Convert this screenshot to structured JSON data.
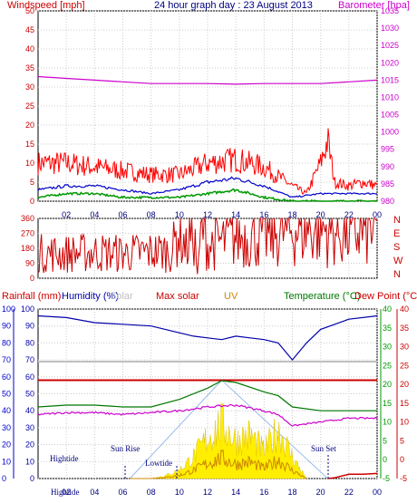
{
  "header": {
    "title": "24 hour graph day : 23 August 2013",
    "left_label": "Windspeed [mph]",
    "right_label": "Barometer [hpa]"
  },
  "lower_header": {
    "rainfall": "Rainfall (mm)",
    "humidity": "Humidity (%)",
    "solar": "Solar",
    "max_solar": "Max solar",
    "uv": "UV",
    "temperature": "Temperature (°C)",
    "dew_point": "Dew Point (°C)"
  },
  "annotations": {
    "hightide_1": "Hightide",
    "sunrise": "Sun Rise",
    "lowtide": "Lowtide",
    "sunset": "Sun Set",
    "hightide_bottom": "Hightide"
  },
  "colors": {
    "wind_gust": "#ff0000",
    "wind_avg": "#0000cc",
    "wind_calm": "#009900",
    "barometer": "#cc00cc",
    "direction": "#cc0000",
    "humidity": "#0000aa",
    "solar_lbl": "#c0c0c0",
    "max_solar": "#cc0000",
    "uv": "#cc8800",
    "temperature": "#007700",
    "dew_point": "#cc0000",
    "rain_axis": "#0000cc",
    "temp_axis": "#009900"
  },
  "chart_data": [
    {
      "type": "line",
      "name": "wind_barometer",
      "x_ticks": [
        "02",
        "04",
        "06",
        "08",
        "10",
        "12",
        "14",
        "16",
        "18",
        "20",
        "22",
        "00"
      ],
      "ylim_left": [
        0,
        50
      ],
      "yticks_left": [
        "0",
        "5",
        "10",
        "15",
        "20",
        "25",
        "30",
        "35",
        "40",
        "45",
        "50"
      ],
      "ylim_right": [
        980,
        1035
      ],
      "yticks_right": [
        "980",
        "985",
        "990",
        "995",
        "1000",
        "1005",
        "1010",
        "1015",
        "1020",
        "1025",
        "1030",
        "1035"
      ],
      "series": [
        {
          "x": [
            0,
            2,
            4,
            6,
            8,
            10,
            12,
            14,
            16,
            18,
            20,
            22,
            24
          ],
          "values": [
            1016,
            1015.5,
            1015,
            1014.5,
            1014,
            1014,
            1014,
            1013.8,
            1014,
            1014,
            1014,
            1014.5,
            1015
          ]
        },
        {
          "x": [
            0,
            2,
            4,
            6,
            8,
            10,
            12,
            14,
            16,
            18,
            19,
            20,
            20.5,
            21,
            22,
            23,
            24
          ],
          "values": [
            10,
            10,
            9,
            8,
            7,
            7,
            10,
            11,
            9,
            4,
            2,
            10,
            16,
            5,
            4,
            5,
            4
          ]
        },
        {
          "x": [
            0,
            2,
            4,
            6,
            8,
            10,
            12,
            14,
            16,
            18,
            20,
            22,
            24
          ],
          "values": [
            3,
            4,
            4,
            3,
            2,
            3,
            5,
            6,
            4,
            1,
            2,
            2,
            2
          ]
        },
        {
          "x": [
            0,
            2,
            4,
            6,
            8,
            10,
            12,
            14,
            16,
            18,
            20,
            22,
            24
          ],
          "values": [
            1,
            2,
            2,
            1,
            1,
            1,
            2,
            3,
            1,
            0,
            0,
            0,
            0
          ]
        }
      ]
    },
    {
      "type": "line",
      "name": "wind_direction",
      "ylim": [
        0,
        360
      ],
      "yticks": [
        "0",
        "90",
        "180",
        "270",
        "360"
      ],
      "compass": [
        "N",
        "W",
        "S",
        "E",
        "N"
      ],
      "series": [
        {
          "x": [
            0,
            2,
            4,
            6,
            8,
            9.5,
            10,
            10.5,
            11,
            11.3,
            11.6,
            12,
            13,
            14,
            16,
            18,
            19,
            20,
            22,
            23,
            24
          ],
          "values": [
            150,
            148,
            155,
            150,
            158,
            165,
            300,
            170,
            320,
            10,
            340,
            200,
            220,
            250,
            260,
            290,
            300,
            300,
            270,
            280,
            300
          ]
        }
      ]
    },
    {
      "type": "line",
      "name": "humidity_temp_solar",
      "ylim_left": [
        0,
        100
      ],
      "yticks_left": [
        "0",
        "10",
        "20",
        "30",
        "40",
        "50",
        "60",
        "70",
        "80",
        "90",
        "100"
      ],
      "ylim_right": [
        -5,
        40
      ],
      "yticks_right": [
        "-5",
        "0",
        "5",
        "10",
        "15",
        "20",
        "25",
        "30",
        "35",
        "40"
      ],
      "series": [
        {
          "x": [
            0,
            2,
            4,
            6,
            8,
            10,
            11,
            12,
            13,
            14,
            15,
            16,
            17,
            18,
            19,
            20,
            22,
            24
          ],
          "values": [
            96,
            95,
            92,
            91,
            90,
            86,
            84,
            83,
            82,
            84,
            83,
            82,
            80,
            70,
            80,
            88,
            94,
            96
          ]
        },
        {
          "x": [
            0,
            24
          ],
          "values": [
            69,
            69
          ]
        },
        {
          "x": [
            0,
            24
          ],
          "values": [
            58,
            58
          ]
        },
        {
          "x": [
            0,
            2,
            4,
            6,
            8,
            10,
            12,
            13,
            14,
            16,
            17,
            18,
            20,
            22,
            24
          ],
          "values": [
            14,
            14.5,
            14.5,
            14,
            14,
            16,
            19,
            21,
            20.5,
            18,
            17,
            14,
            13,
            13,
            13
          ]
        },
        {
          "x": [
            0,
            2,
            4,
            6,
            8,
            10,
            12,
            14,
            16,
            17,
            18,
            20,
            22,
            24
          ],
          "values": [
            12,
            12.5,
            12.5,
            12,
            12.5,
            13,
            14,
            14.5,
            13,
            12,
            9,
            10,
            11,
            11
          ]
        },
        {
          "x": [
            6.5,
            8,
            9,
            10,
            11,
            12,
            13,
            14,
            15,
            16,
            17,
            18,
            19
          ],
          "values": [
            0,
            0,
            1,
            3,
            8,
            15,
            20,
            14,
            16,
            10,
            18,
            8,
            0
          ]
        },
        {
          "x": [
            20.5,
            21,
            22,
            23,
            24
          ],
          "values": [
            0,
            0.5,
            2.5,
            2.5,
            3
          ]
        }
      ]
    }
  ]
}
